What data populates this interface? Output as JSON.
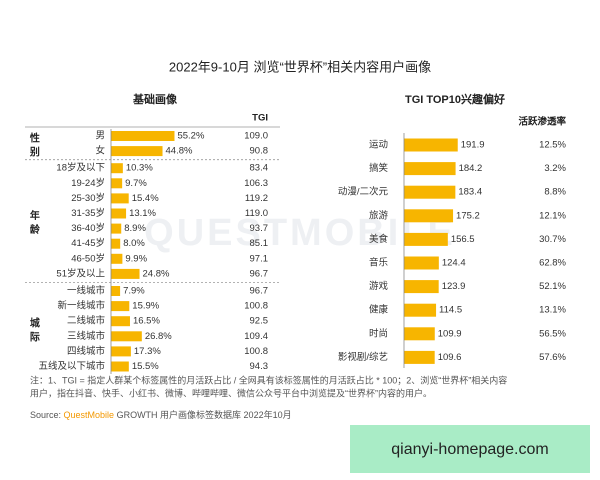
{
  "title": "2022年9-10月 浏览“世界杯”相关内容用户画像",
  "watermark": "QUESTMOBILE",
  "chart_data": [
    {
      "type": "bar",
      "orientation": "horizontal",
      "title": "基础画像",
      "color": "#f7b500",
      "highlight_color": "#e53935",
      "tgi_header": "TGI",
      "groups": [
        {
          "name": "性别",
          "categories": [
            "男",
            "女"
          ],
          "values": [
            55.2,
            44.8
          ],
          "value_labels": [
            "55.2%",
            "44.8%"
          ],
          "tgi": [
            "109.0",
            "90.8"
          ],
          "highlight": [
            0
          ]
        },
        {
          "name": "年龄",
          "categories": [
            "18岁及以下",
            "19-24岁",
            "25-30岁",
            "31-35岁",
            "36-40岁",
            "41-45岁",
            "46-50岁",
            "51岁及以上"
          ],
          "values": [
            10.3,
            9.7,
            15.4,
            13.1,
            8.9,
            8.0,
            9.9,
            24.8
          ],
          "value_labels": [
            "10.3%",
            "9.7%",
            "15.4%",
            "13.1%",
            "8.9%",
            "8.0%",
            "9.9%",
            "24.8%"
          ],
          "tgi": [
            "83.4",
            "106.3",
            "119.2",
            "119.0",
            "93.7",
            "85.1",
            "97.1",
            "96.7"
          ],
          "highlight": [
            2,
            3
          ]
        },
        {
          "name": "城际",
          "categories": [
            "一线城市",
            "新一线城市",
            "二线城市",
            "三线城市",
            "四线城市",
            "五线及以下城市"
          ],
          "values": [
            7.9,
            15.9,
            16.5,
            26.8,
            17.3,
            15.5
          ],
          "value_labels": [
            "7.9%",
            "15.9%",
            "16.5%",
            "26.8%",
            "17.3%",
            "15.5%"
          ],
          "tgi": [
            "96.7",
            "100.8",
            "92.5",
            "109.4",
            "100.8",
            "94.3"
          ],
          "highlight": []
        }
      ]
    },
    {
      "type": "bar",
      "orientation": "horizontal",
      "title": "TGI TOP10兴趣偏好",
      "color": "#f7b500",
      "highlight_color": "#e53935",
      "categories": [
        "运动",
        "搞笑",
        "动漫/二次元",
        "旅游",
        "美食",
        "音乐",
        "游戏",
        "健康",
        "时尚",
        "影视剧/综艺"
      ],
      "values": [
        191.9,
        184.2,
        183.4,
        175.2,
        156.5,
        124.4,
        123.9,
        114.5,
        109.9,
        109.6
      ],
      "highlight": [
        0
      ],
      "rate_header": "活跃渗透率",
      "rate": [
        12.5,
        3.2,
        8.8,
        12.1,
        30.7,
        62.8,
        52.1,
        13.1,
        56.5,
        57.6
      ],
      "rate_labels": [
        "12.5%",
        "3.2%",
        "8.8%",
        "12.1%",
        "30.7%",
        "62.8%",
        "52.1%",
        "13.1%",
        "56.5%",
        "57.6%"
      ]
    }
  ],
  "note": [
    "注：1、TGI = 指定人群某个标签属性的月活跃占比 / 全网具有该标签属性的月活跃占比 * 100；2、浏览“世界杯”相关内容",
    "用户，指在抖音、快手、小红书、微博、哔哩哔哩、微信公众号平台中浏览提及“世界杯”内容的用户。"
  ],
  "source": {
    "label": "Source: ",
    "brand": "QuestMobile",
    "text": " GROWTH 用户画像标签数据库 2022年10月"
  },
  "badge": "qianyi-homepage.com"
}
